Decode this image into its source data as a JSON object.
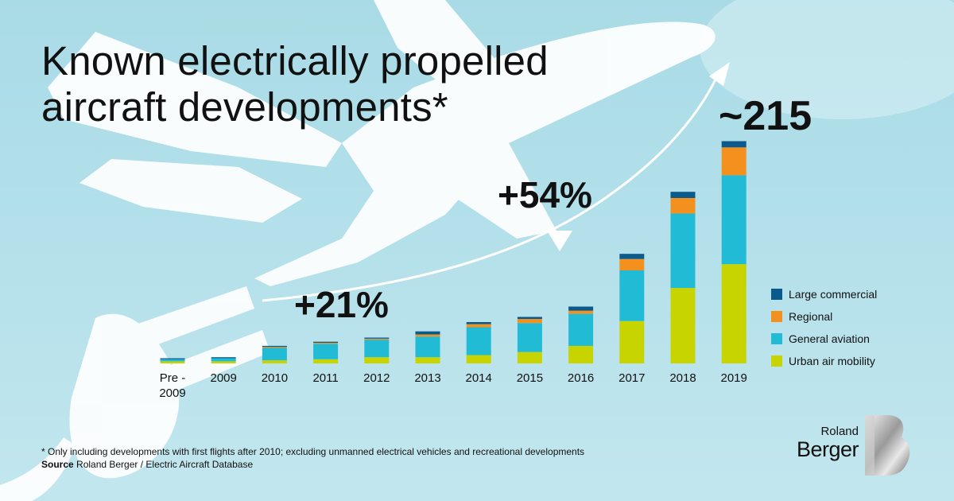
{
  "title_lines": [
    "Known electrically propelled",
    "aircraft developments*"
  ],
  "annotations": {
    "growth_2011": "+21%",
    "growth_2016": "+54%",
    "total_2019": "~215"
  },
  "legend": [
    {
      "label": "Large commercial",
      "color": "#0b5a8c"
    },
    {
      "label": "Regional",
      "color": "#f4901e"
    },
    {
      "label": "General aviation",
      "color": "#22bbd6"
    },
    {
      "label": "Urban air mobility",
      "color": "#c8d400"
    }
  ],
  "footnote": {
    "note": "* Only including developments with first flights after 2010; excluding unmanned electrical vehicles and recreational developments",
    "source_label": "Source",
    "source_text": " Roland Berger / Electric Aircraft Database"
  },
  "logo": {
    "line1": "Roland",
    "line2": "Berger"
  },
  "chart_data": {
    "type": "bar",
    "stacked": true,
    "title": "Known electrically propelled aircraft developments*",
    "categories": [
      "Pre - 2009",
      "2009",
      "2010",
      "2011",
      "2012",
      "2013",
      "2014",
      "2015",
      "2016",
      "2017",
      "2018",
      "2019"
    ],
    "category_lines": [
      [
        "Pre -",
        "2009"
      ],
      [
        "2009"
      ],
      [
        "2010"
      ],
      [
        "2011"
      ],
      [
        "2012"
      ],
      [
        "2013"
      ],
      [
        "2014"
      ],
      [
        "2015"
      ],
      [
        "2016"
      ],
      [
        "2017"
      ],
      [
        "2018"
      ],
      [
        "2019"
      ]
    ],
    "series": [
      {
        "name": "Urban air mobility",
        "color": "#c8d400",
        "values": [
          2,
          2,
          3,
          4,
          6,
          6,
          8,
          11,
          17,
          41,
          73,
          96
        ]
      },
      {
        "name": "General aviation",
        "color": "#22bbd6",
        "values": [
          2,
          3,
          12,
          15,
          17,
          20,
          27,
          28,
          31,
          49,
          72,
          86
        ]
      },
      {
        "name": "Regional",
        "color": "#f4901e",
        "values": [
          0,
          0,
          1,
          1,
          1,
          2,
          3,
          4,
          3,
          11,
          15,
          27
        ]
      },
      {
        "name": "Large commercial",
        "color": "#0b5a8c",
        "values": [
          1,
          1,
          1,
          1,
          1,
          3,
          2,
          2,
          4,
          5,
          6,
          6
        ]
      }
    ],
    "totals_annotation": "~215",
    "ylim": [
      0,
      230
    ],
    "xlabel": "",
    "ylabel": ""
  }
}
